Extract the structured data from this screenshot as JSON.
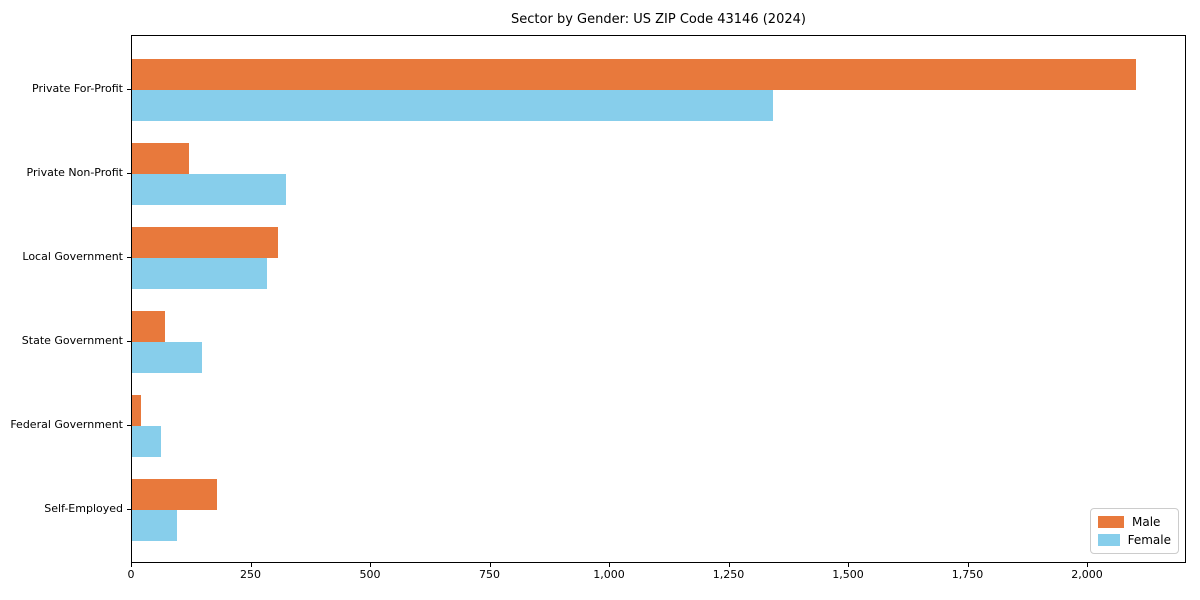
{
  "chart_data": {
    "type": "bar",
    "orientation": "horizontal",
    "title": "Sector by Gender: US ZIP Code 43146 (2024)",
    "categories": [
      "Private For-Profit",
      "Private Non-Profit",
      "Local Government",
      "State Government",
      "Federal Government",
      "Self-Employed"
    ],
    "series": [
      {
        "name": "Male",
        "color": "#E8793C",
        "values": [
          2100,
          120,
          305,
          70,
          18,
          177
        ]
      },
      {
        "name": "Female",
        "color": "#87CEEB",
        "values": [
          1340,
          322,
          283,
          146,
          61,
          94
        ]
      }
    ],
    "xlim": [
      0,
      2207
    ],
    "x_ticks": [
      0,
      250,
      500,
      750,
      1000,
      1250,
      1500,
      1750,
      2000
    ],
    "x_tick_labels": [
      "0",
      "250",
      "500",
      "750",
      "1,000",
      "1,250",
      "1,500",
      "1,750",
      "2,000"
    ],
    "xlabel": "",
    "ylabel": "",
    "grid": false,
    "legend_position": "lower right",
    "frame_color": "#000000",
    "background_color": "#ffffff"
  }
}
